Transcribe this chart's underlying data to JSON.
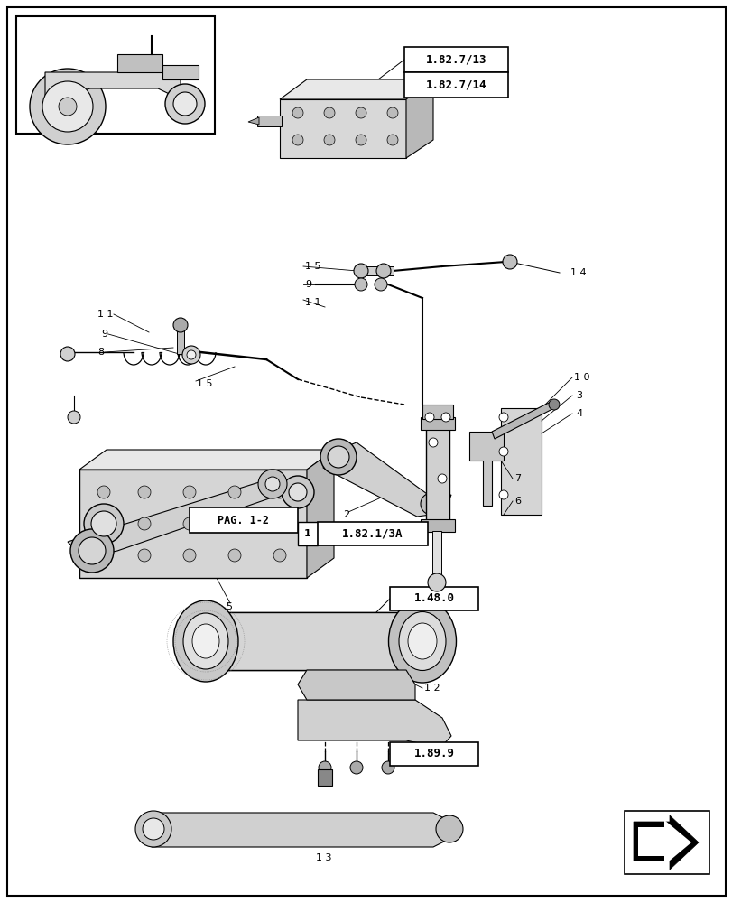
{
  "bg_color": "#ffffff",
  "line_color": "#000000",
  "part_color": "#cccccc",
  "dark_part_color": "#888888"
}
